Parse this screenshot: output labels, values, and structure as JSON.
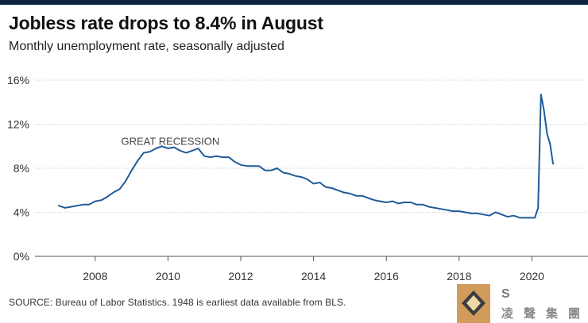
{
  "header": {
    "title": "Jobless rate drops to 8.4% in August",
    "subtitle": "Monthly unemployment rate, seasonally adjusted"
  },
  "footer": {
    "source": "SOURCE: Bureau of Labor Statistics. 1948 is earliest data available from BLS."
  },
  "watermark": {
    "letter": "S",
    "chars": [
      "凌",
      "聲",
      "集",
      "團"
    ]
  },
  "colors": {
    "line": "#1f5c99",
    "grid": "#d9d9d9",
    "topbar": "#0d2240"
  },
  "chart_data": {
    "type": "line",
    "title": "Jobless rate drops to 8.4% in August",
    "subtitle": "Monthly unemployment rate, seasonally adjusted",
    "xlabel": "",
    "ylabel": "",
    "xlim": [
      2006.6,
      2021.2
    ],
    "ylim": [
      0,
      16
    ],
    "yticks": [
      0,
      4,
      8,
      12,
      16
    ],
    "ytick_labels": [
      "0%",
      "4%",
      "8%",
      "12%",
      "16%"
    ],
    "xticks": [
      2008,
      2010,
      2012,
      2014,
      2016,
      2018,
      2020
    ],
    "xtick_labels": [
      "2008",
      "2010",
      "2012",
      "2014",
      "2016",
      "2018",
      "2020"
    ],
    "grid": true,
    "annotations": [
      {
        "text": "GREAT RECESSION",
        "x": 2010.0,
        "y": 10.4
      }
    ],
    "series": [
      {
        "name": "Unemployment rate",
        "x": [
          2007.0,
          2007.17,
          2007.33,
          2007.5,
          2007.67,
          2007.83,
          2008.0,
          2008.17,
          2008.33,
          2008.5,
          2008.67,
          2008.83,
          2009.0,
          2009.17,
          2009.33,
          2009.5,
          2009.67,
          2009.83,
          2010.0,
          2010.17,
          2010.33,
          2010.5,
          2010.67,
          2010.83,
          2011.0,
          2011.17,
          2011.33,
          2011.5,
          2011.67,
          2011.83,
          2012.0,
          2012.17,
          2012.33,
          2012.5,
          2012.67,
          2012.83,
          2013.0,
          2013.17,
          2013.33,
          2013.5,
          2013.67,
          2013.83,
          2014.0,
          2014.17,
          2014.33,
          2014.5,
          2014.67,
          2014.83,
          2015.0,
          2015.17,
          2015.33,
          2015.5,
          2015.67,
          2015.83,
          2016.0,
          2016.17,
          2016.33,
          2016.5,
          2016.67,
          2016.83,
          2017.0,
          2017.17,
          2017.33,
          2017.5,
          2017.67,
          2017.83,
          2018.0,
          2018.17,
          2018.33,
          2018.5,
          2018.67,
          2018.83,
          2019.0,
          2019.17,
          2019.33,
          2019.5,
          2019.67,
          2019.83,
          2020.0,
          2020.08,
          2020.17,
          2020.25,
          2020.33,
          2020.42,
          2020.5,
          2020.58
        ],
        "values": [
          4.6,
          4.4,
          4.5,
          4.6,
          4.7,
          4.7,
          5.0,
          5.1,
          5.4,
          5.8,
          6.1,
          6.8,
          7.8,
          8.7,
          9.4,
          9.5,
          9.8,
          10.0,
          9.8,
          9.9,
          9.6,
          9.4,
          9.6,
          9.8,
          9.1,
          9.0,
          9.1,
          9.0,
          9.0,
          8.6,
          8.3,
          8.2,
          8.2,
          8.2,
          7.8,
          7.8,
          8.0,
          7.6,
          7.5,
          7.3,
          7.2,
          7.0,
          6.6,
          6.7,
          6.3,
          6.2,
          6.0,
          5.8,
          5.7,
          5.5,
          5.5,
          5.3,
          5.1,
          5.0,
          4.9,
          5.0,
          4.8,
          4.9,
          4.9,
          4.7,
          4.7,
          4.5,
          4.4,
          4.3,
          4.2,
          4.1,
          4.1,
          4.0,
          3.9,
          3.9,
          3.8,
          3.7,
          4.0,
          3.8,
          3.6,
          3.7,
          3.5,
          3.5,
          3.5,
          3.5,
          4.4,
          14.7,
          13.3,
          11.1,
          10.2,
          8.4
        ]
      }
    ]
  }
}
